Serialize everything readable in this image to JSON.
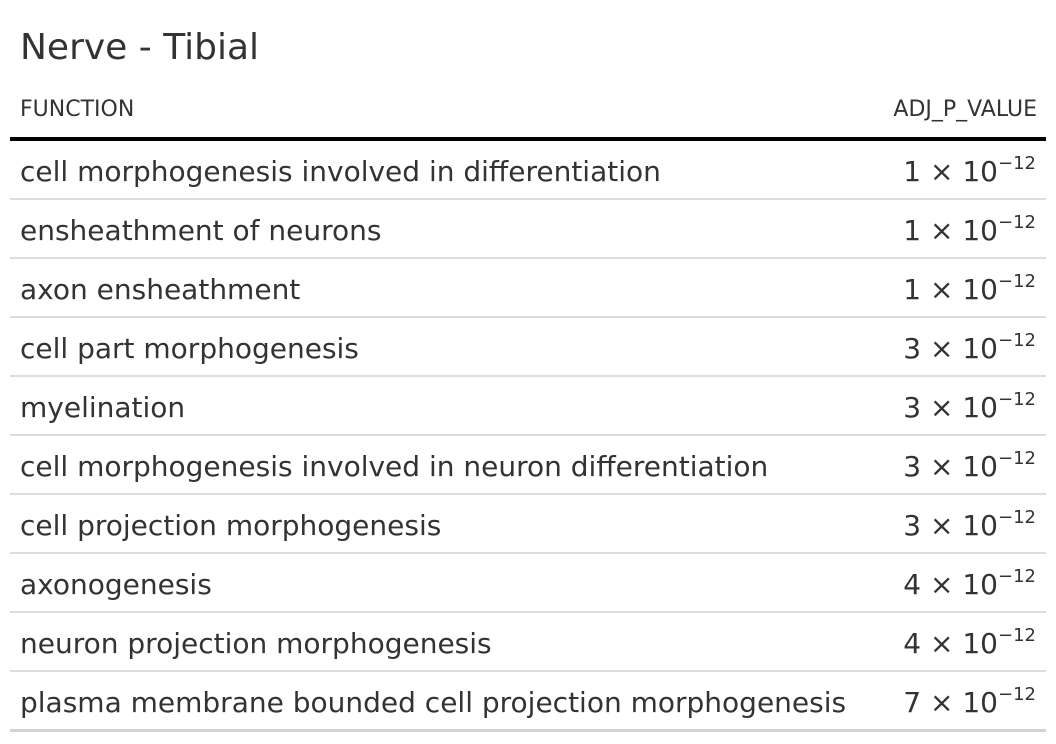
{
  "title": "Nerve - Tibial",
  "columns": {
    "function": "FUNCTION",
    "adj_p_value": "ADJ_P_VALUE"
  },
  "rows": [
    {
      "function": "cell morphogenesis involved in differentiation",
      "mantissa": "1",
      "times": "×",
      "base": "10",
      "exponent": "−12"
    },
    {
      "function": "ensheathment of neurons",
      "mantissa": "1",
      "times": "×",
      "base": "10",
      "exponent": "−12"
    },
    {
      "function": "axon ensheathment",
      "mantissa": "1",
      "times": "×",
      "base": "10",
      "exponent": "−12"
    },
    {
      "function": "cell part morphogenesis",
      "mantissa": "3",
      "times": "×",
      "base": "10",
      "exponent": "−12"
    },
    {
      "function": "myelination",
      "mantissa": "3",
      "times": "×",
      "base": "10",
      "exponent": "−12"
    },
    {
      "function": "cell morphogenesis involved in neuron differentiation",
      "mantissa": "3",
      "times": "×",
      "base": "10",
      "exponent": "−12"
    },
    {
      "function": "cell projection morphogenesis",
      "mantissa": "3",
      "times": "×",
      "base": "10",
      "exponent": "−12"
    },
    {
      "function": "axonogenesis",
      "mantissa": "4",
      "times": "×",
      "base": "10",
      "exponent": "−12"
    },
    {
      "function": "neuron projection morphogenesis",
      "mantissa": "4",
      "times": "×",
      "base": "10",
      "exponent": "−12"
    },
    {
      "function": "plasma membrane bounded cell projection morphogenesis",
      "mantissa": "7",
      "times": "×",
      "base": "10",
      "exponent": "−12"
    }
  ]
}
